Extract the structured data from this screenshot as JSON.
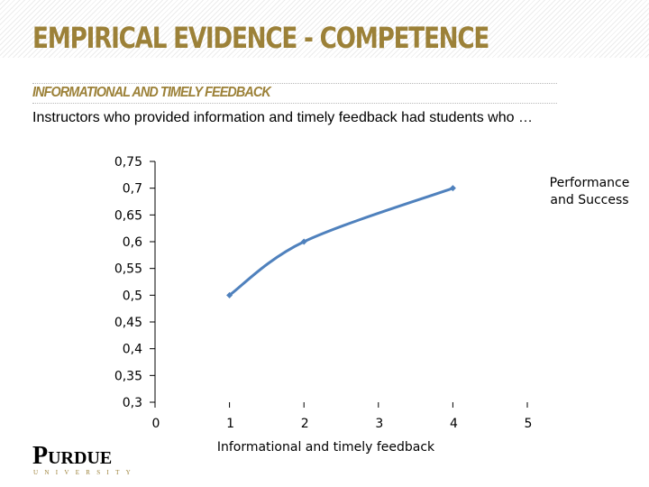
{
  "slide": {
    "title": "EMPIRICAL EVIDENCE - COMPETENCE",
    "subheading": "INFORMATIONAL AND TIMELY FEEDBACK",
    "intro": "Instructors who provided information and timely feedback had students who …"
  },
  "logo": {
    "word": "PURDUE",
    "sub": "UNIVERSITY"
  },
  "colors": {
    "title": "#9c8138",
    "subheading": "#9c8138",
    "series": "#4f81bd",
    "axis": "#000000"
  },
  "chart_data": {
    "type": "line",
    "title": "",
    "xlabel": "Informational and timely feedback",
    "ylabel": "",
    "xlim": [
      0,
      5
    ],
    "ylim": [
      0.3,
      0.75
    ],
    "x_ticks": [
      "0",
      "1",
      "2",
      "3",
      "4",
      "5"
    ],
    "y_ticks": [
      "0,75",
      "0,7",
      "0,65",
      "0,6",
      "0,55",
      "0,5",
      "0,45",
      "0,4",
      "0,35",
      "0,3"
    ],
    "legend_position": "top-right",
    "grid": false,
    "smooth": true,
    "series": [
      {
        "name": "Performance and Success",
        "name_lines": [
          "Performance",
          "and Success"
        ],
        "x": [
          1,
          2,
          4
        ],
        "y": [
          0.5,
          0.6,
          0.7
        ]
      }
    ]
  }
}
